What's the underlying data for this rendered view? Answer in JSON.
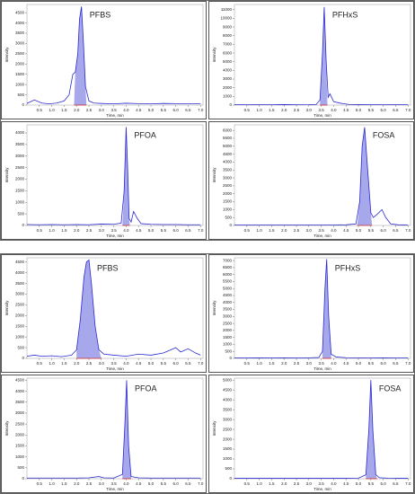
{
  "chart_data": [
    {
      "type": "line",
      "title": "PFBS",
      "xlabel": "Time, min",
      "ylabel": "Intensity",
      "color": "#2a2ad0",
      "shade_color": "#8a8ae6",
      "baseline_color": "#d03030",
      "x": [
        0,
        0.3,
        0.6,
        0.9,
        1.2,
        1.5,
        1.7,
        1.85,
        1.95,
        2.05,
        2.12,
        2.2,
        2.28,
        2.36,
        2.5,
        2.7,
        3.0,
        3.5,
        4.0,
        4.5,
        5.0,
        5.5,
        6.0,
        6.5,
        7.0
      ],
      "values": [
        80,
        250,
        100,
        60,
        100,
        200,
        500,
        1500,
        1600,
        2500,
        4200,
        4800,
        3000,
        900,
        200,
        100,
        80,
        60,
        90,
        70,
        60,
        80,
        70,
        60,
        60
      ],
      "shade": [
        1.9,
        2.4
      ],
      "xlim": [
        0,
        7.1
      ],
      "ylim": [
        0,
        4900
      ],
      "xticks": [
        0.5,
        {
          "value": 1,
          "label": "1.0"
        },
        1.5,
        {
          "value": 2,
          "label": "2.0"
        },
        2.5,
        {
          "value": 3,
          "label": "3.0"
        },
        3.5,
        {
          "value": 4,
          "label": "4.0"
        },
        4.5,
        {
          "value": 5,
          "label": "5.0"
        },
        5.5,
        {
          "value": 6,
          "label": "6.0"
        },
        6.5,
        {
          "value": 7,
          "label": "7.0"
        }
      ],
      "yticks": [
        0,
        500,
        1000,
        1500,
        2000,
        2500,
        3000,
        3500,
        4000,
        4500
      ]
    },
    {
      "type": "line",
      "title": "PFHxS",
      "xlabel": "Time, min",
      "ylabel": "Intensity",
      "color": "#2a2ad0",
      "shade_color": "#8a8ae6",
      "baseline_color": "#d03030",
      "x": [
        0,
        0.5,
        1,
        1.5,
        2,
        2.5,
        3,
        3.3,
        3.45,
        3.55,
        3.62,
        3.7,
        3.78,
        3.85,
        4.0,
        4.3,
        4.6,
        5,
        5.5,
        6,
        6.5,
        7
      ],
      "values": [
        50,
        40,
        50,
        40,
        60,
        40,
        50,
        80,
        600,
        6000,
        11300,
        5000,
        900,
        1300,
        400,
        200,
        80,
        60,
        50,
        40,
        50,
        40
      ],
      "shade": [
        3.45,
        3.75
      ],
      "xlim": [
        0,
        7.1
      ],
      "ylim": [
        0,
        11600
      ],
      "xticks": [
        0.5,
        {
          "value": 1,
          "label": "1.0"
        },
        1.5,
        {
          "value": 2,
          "label": "2.0"
        },
        2.5,
        {
          "value": 3,
          "label": "3.0"
        },
        3.5,
        {
          "value": 4,
          "label": "4.0"
        },
        4.5,
        {
          "value": 5,
          "label": "5.0"
        },
        5.5,
        {
          "value": 6,
          "label": "6.0"
        },
        6.5,
        {
          "value": 7,
          "label": "7.0"
        }
      ],
      "yticks": [
        0,
        1000,
        2000,
        3000,
        4000,
        5000,
        6000,
        7000,
        8000,
        9000,
        10000,
        11000
      ]
    },
    {
      "type": "line",
      "title": "PFOA",
      "xlabel": "Time, min",
      "ylabel": "Intensity",
      "color": "#2a2ad0",
      "shade_color": "#8a8ae6",
      "baseline_color": "#d03030",
      "x": [
        0,
        0.5,
        1,
        1.5,
        2,
        2.5,
        3,
        3.5,
        3.8,
        3.92,
        4.0,
        4.06,
        4.12,
        4.2,
        4.3,
        4.45,
        4.6,
        5,
        5.5,
        6,
        6.5,
        7
      ],
      "values": [
        40,
        30,
        40,
        30,
        40,
        30,
        60,
        50,
        100,
        1500,
        4250,
        2500,
        300,
        150,
        600,
        300,
        80,
        50,
        40,
        40,
        30,
        30
      ],
      "shade": [
        3.85,
        4.15
      ],
      "xlim": [
        0,
        7.1
      ],
      "ylim": [
        0,
        4350
      ],
      "xticks": [
        0.5,
        {
          "value": 1,
          "label": "1.0"
        },
        1.5,
        {
          "value": 2,
          "label": "2.0"
        },
        2.5,
        {
          "value": 3,
          "label": "3.0"
        },
        3.5,
        {
          "value": 4,
          "label": "4.0"
        },
        4.5,
        {
          "value": 5,
          "label": "5.0"
        },
        5.5,
        {
          "value": 6,
          "label": "6.0"
        },
        6.5,
        {
          "value": 7,
          "label": "7.0"
        }
      ],
      "yticks": [
        0,
        500,
        1000,
        1500,
        2000,
        2500,
        3000,
        3500,
        4000
      ]
    },
    {
      "type": "line",
      "title": "FOSA",
      "xlabel": "Time, min",
      "ylabel": "Intensity",
      "color": "#2a2ad0",
      "shade_color": "#8a8ae6",
      "baseline_color": "#d03030",
      "x": [
        0,
        0.5,
        1,
        1.5,
        2,
        2.5,
        3,
        3.5,
        4,
        4.5,
        4.9,
        5.05,
        5.15,
        5.25,
        5.35,
        5.5,
        5.6,
        5.75,
        5.95,
        6.1,
        6.3,
        6.6,
        7
      ],
      "values": [
        30,
        30,
        30,
        30,
        30,
        30,
        30,
        30,
        30,
        40,
        100,
        1500,
        5000,
        6200,
        4000,
        800,
        500,
        700,
        1000,
        500,
        100,
        40,
        30
      ],
      "shade": [
        4.95,
        5.55
      ],
      "xlim": [
        0,
        7.1
      ],
      "ylim": [
        0,
        6350
      ],
      "xticks": [
        0.5,
        {
          "value": 1,
          "label": "1.0"
        },
        1.5,
        {
          "value": 2,
          "label": "2.0"
        },
        2.5,
        {
          "value": 3,
          "label": "3.0"
        },
        3.5,
        {
          "value": 4,
          "label": "4.0"
        },
        4.5,
        {
          "value": 5,
          "label": "5.0"
        },
        5.5,
        {
          "value": 6,
          "label": "6.0"
        },
        6.5,
        {
          "value": 7,
          "label": "7.0"
        }
      ],
      "yticks": [
        0,
        500,
        1000,
        1500,
        2000,
        2500,
        3000,
        3500,
        4000,
        4500,
        5000,
        5500,
        6000
      ]
    },
    {
      "type": "line",
      "title": "PFBS",
      "xlabel": "Time, min",
      "ylabel": "Intensity",
      "color": "#2a2ad0",
      "shade_color": "#8a8ae6",
      "baseline_color": "#d03030",
      "x": [
        0,
        0.3,
        0.6,
        1,
        1.4,
        1.8,
        2.0,
        2.15,
        2.3,
        2.4,
        2.5,
        2.6,
        2.75,
        2.9,
        3.1,
        3.5,
        4,
        4.5,
        5,
        5.5,
        5.8,
        6.0,
        6.2,
        6.5,
        6.8,
        7
      ],
      "values": [
        100,
        150,
        100,
        120,
        80,
        150,
        400,
        1800,
        3800,
        4500,
        4600,
        3500,
        1500,
        400,
        200,
        150,
        100,
        200,
        150,
        250,
        400,
        500,
        300,
        450,
        250,
        150
      ],
      "shade": [
        2.0,
        3.0
      ],
      "xlim": [
        0,
        7.1
      ],
      "ylim": [
        0,
        4700
      ],
      "xticks": [
        0.5,
        {
          "value": 1,
          "label": "1.0"
        },
        1.5,
        {
          "value": 2,
          "label": "2.0"
        },
        2.5,
        {
          "value": 3,
          "label": "3.0"
        },
        3.5,
        {
          "value": 4,
          "label": "4.0"
        },
        4.5,
        {
          "value": 5,
          "label": "5.0"
        },
        5.5,
        {
          "value": 6,
          "label": "6.0"
        },
        6.5,
        {
          "value": 7,
          "label": "7.0"
        }
      ],
      "yticks": [
        0,
        500,
        1000,
        1500,
        2000,
        2500,
        3000,
        3500,
        4000,
        4500
      ]
    },
    {
      "type": "line",
      "title": "PFHxS",
      "xlabel": "Time, min",
      "ylabel": "Intensity",
      "color": "#2a2ad0",
      "shade_color": "#8a8ae6",
      "baseline_color": "#d03030",
      "x": [
        0,
        0.5,
        1,
        1.5,
        2,
        2.5,
        3,
        3.4,
        3.55,
        3.65,
        3.72,
        3.8,
        3.9,
        4.1,
        4.5,
        5,
        5.5,
        6,
        6.5,
        7
      ],
      "values": [
        40,
        30,
        40,
        30,
        40,
        30,
        40,
        60,
        500,
        5000,
        7100,
        3000,
        300,
        100,
        50,
        40,
        30,
        40,
        30,
        30
      ],
      "shade": [
        3.55,
        3.9
      ],
      "xlim": [
        0,
        7.1
      ],
      "ylim": [
        0,
        7200
      ],
      "xticks": [
        0.5,
        {
          "value": 1,
          "label": "1.0"
        },
        1.5,
        {
          "value": 2,
          "label": "2.0"
        },
        2.5,
        {
          "value": 3,
          "label": "3.0"
        },
        3.5,
        {
          "value": 4,
          "label": "4.0"
        },
        4.5,
        {
          "value": 5,
          "label": "5.0"
        },
        5.5,
        {
          "value": 6,
          "label": "6.0"
        },
        6.5,
        {
          "value": 7,
          "label": "7.0"
        }
      ],
      "yticks": [
        0,
        500,
        1000,
        1500,
        2000,
        2500,
        3000,
        3500,
        4000,
        4500,
        5000,
        5500,
        6000,
        6500,
        7000
      ]
    },
    {
      "type": "line",
      "title": "PFOA",
      "xlabel": "Time, min",
      "ylabel": "Intensity",
      "color": "#2a2ad0",
      "shade_color": "#8a8ae6",
      "baseline_color": "#d03030",
      "x": [
        0,
        0.5,
        1,
        1.5,
        2,
        2.5,
        2.9,
        3.1,
        3.5,
        3.85,
        3.95,
        4.02,
        4.1,
        4.2,
        4.5,
        5,
        5.5,
        6,
        6.5,
        7
      ],
      "values": [
        30,
        30,
        30,
        30,
        30,
        40,
        100,
        40,
        30,
        200,
        2500,
        4500,
        1500,
        100,
        40,
        30,
        30,
        30,
        30,
        30
      ],
      "shade": [
        3.85,
        4.2
      ],
      "xlim": [
        0,
        7.1
      ],
      "ylim": [
        0,
        4600
      ],
      "xticks": [
        0.5,
        {
          "value": 1,
          "label": "1.0"
        },
        1.5,
        {
          "value": 2,
          "label": "2.0"
        },
        2.5,
        {
          "value": 3,
          "label": "3.0"
        },
        3.5,
        {
          "value": 4,
          "label": "4.0"
        },
        4.5,
        {
          "value": 5,
          "label": "5.0"
        },
        5.5,
        {
          "value": 6,
          "label": "6.0"
        },
        6.5,
        {
          "value": 7,
          "label": "7.0"
        }
      ],
      "yticks": [
        0,
        500,
        1000,
        1500,
        2000,
        2500,
        3000,
        3500,
        4000,
        4500
      ]
    },
    {
      "type": "line",
      "title": "FOSA",
      "xlabel": "Time, min",
      "ylabel": "Intensity",
      "color": "#2a2ad0",
      "shade_color": "#8a8ae6",
      "baseline_color": "#d03030",
      "x": [
        0,
        0.5,
        1,
        1.5,
        2,
        2.5,
        3,
        3.5,
        4,
        4.5,
        5,
        5.3,
        5.42,
        5.5,
        5.58,
        5.7,
        5.85,
        6.2,
        6.6,
        7
      ],
      "values": [
        20,
        20,
        20,
        20,
        20,
        20,
        20,
        20,
        20,
        20,
        30,
        200,
        2500,
        5000,
        2500,
        200,
        50,
        30,
        20,
        20
      ],
      "shade": [
        5.3,
        5.75
      ],
      "xlim": [
        0,
        7.1
      ],
      "ylim": [
        0,
        5100
      ],
      "xticks": [
        0.5,
        {
          "value": 1,
          "label": "1.0"
        },
        1.5,
        {
          "value": 2,
          "label": "2.0"
        },
        2.5,
        {
          "value": 3,
          "label": "3.0"
        },
        3.5,
        {
          "value": 4,
          "label": "4.0"
        },
        4.5,
        {
          "value": 5,
          "label": "5.0"
        },
        5.5,
        {
          "value": 6,
          "label": "6.0"
        },
        6.5,
        {
          "value": 7,
          "label": "7.0"
        }
      ],
      "yticks": [
        0,
        500,
        1000,
        1500,
        2000,
        2500,
        3000,
        3500,
        4000,
        4500,
        5000
      ]
    }
  ]
}
